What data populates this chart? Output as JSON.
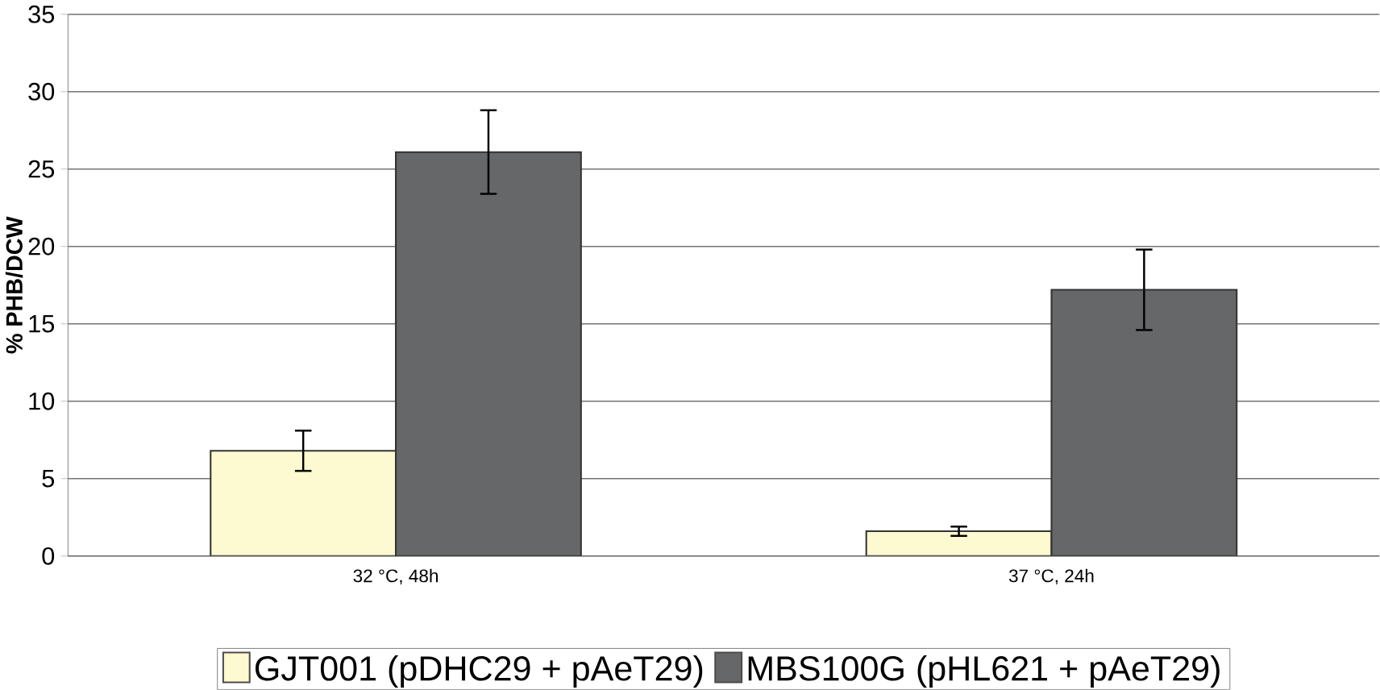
{
  "chart_data": {
    "type": "bar",
    "ylabel": "% PHB/DCW",
    "categories": [
      "32 °C, 48h",
      "37 °C, 24h"
    ],
    "series": [
      {
        "name": "GJT001 (pDHC29 + pAeT29)",
        "color": "#fdf9d0",
        "values": [
          6.8,
          1.6
        ],
        "errors": [
          1.3,
          0.3
        ]
      },
      {
        "name": "MBS100G (pHL621 + pAeT29)",
        "color": "#666768",
        "values": [
          26.1,
          17.2
        ],
        "errors": [
          2.7,
          2.6
        ]
      }
    ],
    "ylim": [
      0,
      35
    ],
    "yticks": [
      0,
      5,
      10,
      15,
      20,
      25,
      30,
      35
    ],
    "grid": "y",
    "legend": "bottom"
  }
}
